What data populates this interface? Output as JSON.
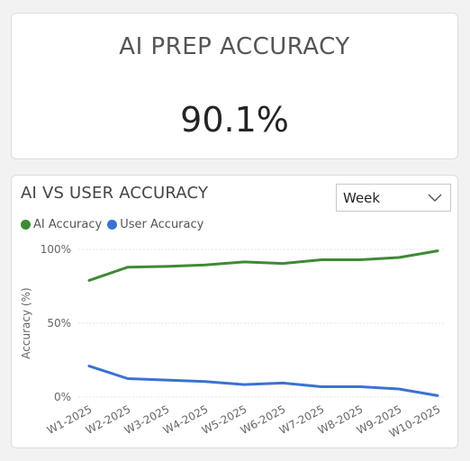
{
  "kpi": {
    "title": "AI PREP ACCURACY",
    "value": "90.1%"
  },
  "chart_panel": {
    "title": "AI VS USER ACCURACY",
    "dropdown": {
      "selected": "Week",
      "icon": "chevron-down-icon"
    }
  },
  "chart_data": {
    "type": "line",
    "categories": [
      "W1-2025",
      "W2-2025",
      "W3-2025",
      "W4-2025",
      "W5-2025",
      "W6-2025",
      "W7-2025",
      "W8-2025",
      "W9-2025",
      "W10-2025"
    ],
    "series": [
      {
        "name": "AI Accuracy",
        "color": "#3f8a35",
        "values": [
          79,
          88,
          88.5,
          89.5,
          91.5,
          90.5,
          93,
          93,
          94.5,
          99
        ]
      },
      {
        "name": "User Accuracy",
        "color": "#3a72d2",
        "values": [
          21,
          12.5,
          11.5,
          10.5,
          8.5,
          9.5,
          7,
          7,
          5.5,
          1
        ]
      }
    ],
    "ylabel": "Accuracy (%)",
    "ylim": [
      0,
      100
    ],
    "yticks": [
      {
        "value": 0,
        "label": "0%"
      },
      {
        "value": 50,
        "label": "50%"
      },
      {
        "value": 100,
        "label": "100%"
      }
    ],
    "grid": true,
    "grid_color": "#e6e6e6",
    "legend_position": "top-left"
  }
}
